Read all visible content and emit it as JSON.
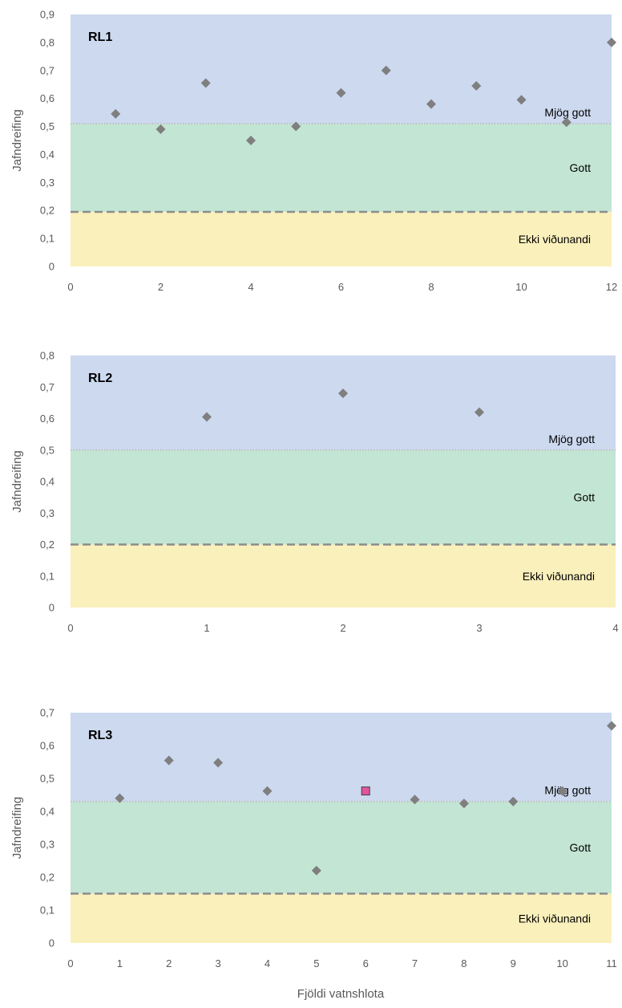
{
  "colors": {
    "very_good_zone": "#ccd9ef",
    "good_zone": "#c3e5d4",
    "not_acceptable_zone": "#faf0bc",
    "point": "#7f7f7f",
    "highlight_point": "#e0559e",
    "dashed_line": "#8c8c8c",
    "dotted_line": "#bfbfbf"
  },
  "xlabel": "Fjöldi vatnshlota",
  "chart_data": [
    {
      "type": "scatter",
      "title": "RL1",
      "ylabel": "Jafndreifing",
      "xlim": [
        0,
        12
      ],
      "ylim": [
        0,
        0.9
      ],
      "xticks": [
        "0",
        "2",
        "4",
        "6",
        "8",
        "10",
        "12"
      ],
      "yticks": [
        "0",
        "0,1",
        "0,2",
        "0,3",
        "0,4",
        "0,5",
        "0,6",
        "0,7",
        "0,8",
        "0,9"
      ],
      "thresholds": {
        "not_acceptable_good": 0.195,
        "good_very_good": 0.51
      },
      "zones": [
        "Mjög gott",
        "Gott",
        "Ekki viðunandi"
      ],
      "x": [
        1,
        2,
        3,
        4,
        5,
        6,
        7,
        8,
        9,
        10,
        11,
        12
      ],
      "y": [
        0.545,
        0.49,
        0.655,
        0.45,
        0.5,
        0.62,
        0.7,
        0.58,
        0.645,
        0.595,
        0.515,
        0.8
      ],
      "highlight": []
    },
    {
      "type": "scatter",
      "title": "RL2",
      "ylabel": "Jafndreifing",
      "xlim": [
        0,
        4
      ],
      "ylim": [
        0,
        0.8
      ],
      "xticks": [
        "0",
        "1",
        "2",
        "3",
        "4"
      ],
      "yticks": [
        "0",
        "0,1",
        "0,2",
        "0,3",
        "0,4",
        "0,5",
        "0,6",
        "0,7",
        "0,8"
      ],
      "thresholds": {
        "not_acceptable_good": 0.2,
        "good_very_good": 0.5
      },
      "zones": [
        "Mjög gott",
        "Gott",
        "Ekki viðunandi"
      ],
      "x": [
        1,
        2,
        3
      ],
      "y": [
        0.605,
        0.68,
        0.62
      ],
      "highlight": []
    },
    {
      "type": "scatter",
      "title": "RL3",
      "ylabel": "Jafndreifing",
      "xlim": [
        0,
        11
      ],
      "ylim": [
        0,
        0.7
      ],
      "xticks": [
        "0",
        "1",
        "2",
        "3",
        "4",
        "5",
        "6",
        "7",
        "8",
        "9",
        "10",
        "11"
      ],
      "yticks": [
        "0",
        "0,1",
        "0,2",
        "0,3",
        "0,4",
        "0,5",
        "0,6",
        "0,7"
      ],
      "thresholds": {
        "not_acceptable_good": 0.15,
        "good_very_good": 0.43
      },
      "zones": [
        "Mjög gott",
        "Gott",
        "Ekki viðunandi"
      ],
      "x": [
        1,
        2,
        3,
        4,
        5,
        6,
        7,
        8,
        9,
        10,
        11
      ],
      "y": [
        0.44,
        0.555,
        0.548,
        0.462,
        0.22,
        0.462,
        0.436,
        0.424,
        0.43,
        0.462,
        0.66
      ],
      "highlight": [
        5
      ]
    }
  ]
}
